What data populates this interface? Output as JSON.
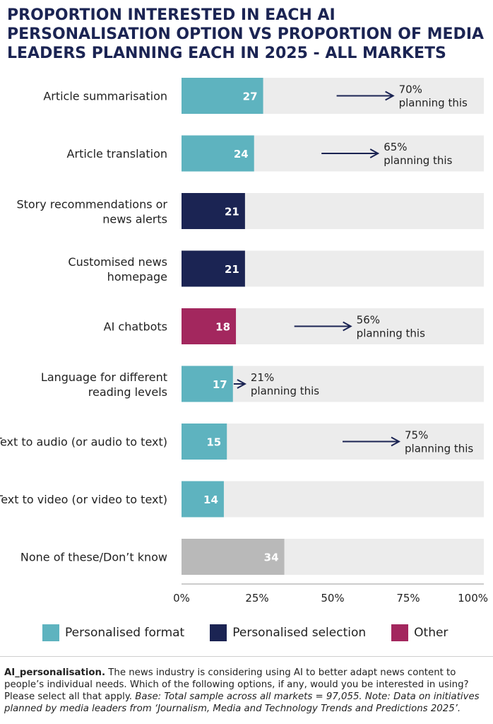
{
  "title": "PROPORTION INTERESTED IN EACH AI PERSONALISATION OPTION VS PROPORTION OF MEDIA LEADERS PLANNING EACH IN 2025 - ALL MARKETS",
  "colors": {
    "personalised_format": "#5eb3bf",
    "personalised_selection": "#1b2453",
    "other": "#a3275e",
    "none": "#b9b9b9",
    "track": "#ececec",
    "arrow": "#1b2453"
  },
  "chart_data": {
    "type": "bar",
    "orientation": "horizontal",
    "categories": [
      "Article summarisation",
      "Article translation",
      "Story recommendations or news alerts",
      "Customised news homepage",
      "AI chatbots",
      "Language for different reading levels",
      "Text to audio (or audio to text)",
      "Text to video (or video to text)",
      "None of these/Don’t know"
    ],
    "category_label_lines": [
      [
        "Article summarisation"
      ],
      [
        "Article translation"
      ],
      [
        "Story recommendations or",
        "news alerts"
      ],
      [
        "Customised news",
        "homepage"
      ],
      [
        "AI chatbots"
      ],
      [
        "Language for different",
        "reading levels"
      ],
      [
        "Text to audio (or audio to text)"
      ],
      [
        "Text to video (or video to text)"
      ],
      [
        "None of these/Don’t know"
      ]
    ],
    "values": [
      27,
      24,
      21,
      21,
      18,
      17,
      15,
      14,
      34
    ],
    "groups": [
      "Personalised format",
      "Personalised format",
      "Personalised selection",
      "Personalised selection",
      "Other",
      "Personalised format",
      "Personalised format",
      "Personalised format",
      "None"
    ],
    "planning": [
      70,
      65,
      null,
      null,
      56,
      21,
      75,
      null,
      null
    ],
    "planning_text": "planning this",
    "xlim": [
      0,
      100
    ],
    "xticks": [
      "0%",
      "25%",
      "50%",
      "75%",
      "100%"
    ],
    "legend": [
      {
        "name": "Personalised format",
        "color": "#5eb3bf"
      },
      {
        "name": "Personalised selection",
        "color": "#1b2453"
      },
      {
        "name": "Other",
        "color": "#a3275e"
      }
    ],
    "legend_position": "bottom",
    "grid": false
  },
  "footnote": {
    "label": "AI_personalisation.",
    "question": " The news industry is considering using AI to better adapt news content to people’s individual needs. Which of the following options, if any, would you be interested in using? Please select all that apply. ",
    "note": "Base: Total sample across all markets = 97,055. Note: Data on initiatives planned by media leaders from ‘Journalism, Media and Technology Trends and Predictions 2025’."
  }
}
